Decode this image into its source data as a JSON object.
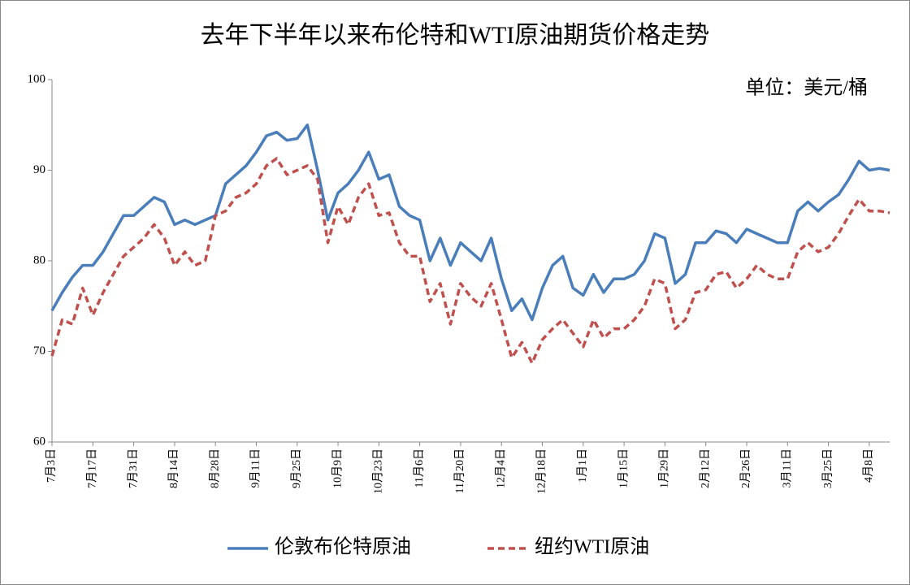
{
  "chart_data": {
    "type": "line",
    "title": "去年下半年以来布伦特和WTI原油期货价格走势",
    "annotation": "单位：美元/桶",
    "categories": [
      "7月3日",
      null,
      null,
      null,
      "7月17日",
      null,
      null,
      null,
      "7月31日",
      null,
      null,
      null,
      "8月14日",
      null,
      null,
      null,
      "8月28日",
      null,
      null,
      null,
      "9月11日",
      null,
      null,
      null,
      "9月25日",
      null,
      null,
      null,
      "10月9日",
      null,
      null,
      null,
      "10月23日",
      null,
      null,
      null,
      "11月6日",
      null,
      null,
      null,
      "11月20日",
      null,
      null,
      null,
      "12月4日",
      null,
      null,
      null,
      "12月18日",
      null,
      null,
      null,
      "1月1日",
      null,
      null,
      null,
      "1月15日",
      null,
      null,
      null,
      "1月29日",
      null,
      null,
      null,
      "2月12日",
      null,
      null,
      null,
      "2月26日",
      null,
      null,
      null,
      "3月11日",
      null,
      null,
      null,
      "3月25日",
      null,
      null,
      null,
      "4月8日",
      null,
      null
    ],
    "series": [
      {
        "name": "伦敦布伦特原油",
        "color": "#4a7ebb",
        "dash": false,
        "values": [
          74.5,
          76.5,
          78.2,
          79.5,
          79.5,
          81,
          83,
          85,
          85,
          86,
          87,
          86.5,
          84,
          84.5,
          84,
          84.5,
          85,
          88.5,
          89.5,
          90.5,
          92,
          93.8,
          94.2,
          93.3,
          93.5,
          95,
          90,
          84.5,
          87.5,
          88.5,
          90,
          92,
          89,
          89.5,
          86,
          85,
          84.5,
          80,
          82.5,
          79.5,
          82,
          81,
          80,
          82.5,
          78,
          74.5,
          75.8,
          73.5,
          77,
          79.5,
          80.5,
          77,
          76.2,
          78.5,
          76.5,
          78,
          78,
          78.5,
          80,
          83,
          82.5,
          77.5,
          78.5,
          82,
          82,
          83.3,
          83,
          82,
          83.5,
          83,
          82.5,
          82,
          82,
          85.5,
          86.5,
          85.5,
          86.5,
          87.3,
          89,
          91,
          90,
          90.2,
          90
        ]
      },
      {
        "name": "纽约WTI原油",
        "color": "#c0504d",
        "dash": true,
        "values": [
          69.5,
          73.5,
          73,
          77,
          74,
          76.5,
          78.5,
          80.5,
          81.5,
          82.5,
          84,
          82.5,
          79.5,
          81,
          79.5,
          80,
          85,
          85.5,
          87,
          87.5,
          88.5,
          90.5,
          91.3,
          89.5,
          90,
          90.5,
          89,
          82,
          86,
          84,
          87,
          88.5,
          85,
          85.3,
          82,
          80.5,
          80.5,
          75.5,
          77.5,
          73,
          77.5,
          76,
          75,
          77.5,
          73.5,
          69.3,
          71,
          68.7,
          71.3,
          72.5,
          73.5,
          72,
          70.5,
          73.5,
          71.5,
          72.5,
          72.5,
          73.5,
          75,
          78,
          77.5,
          72.5,
          73.5,
          76.5,
          76.8,
          78.5,
          78.8,
          77,
          78,
          79.5,
          78.5,
          78,
          78,
          81,
          82,
          81,
          81.5,
          83,
          85,
          86.8,
          85.5,
          85.5,
          85.3
        ]
      }
    ],
    "ylim": [
      60,
      100
    ],
    "yticks": [
      60,
      70,
      80,
      90,
      100
    ],
    "grid": false
  }
}
